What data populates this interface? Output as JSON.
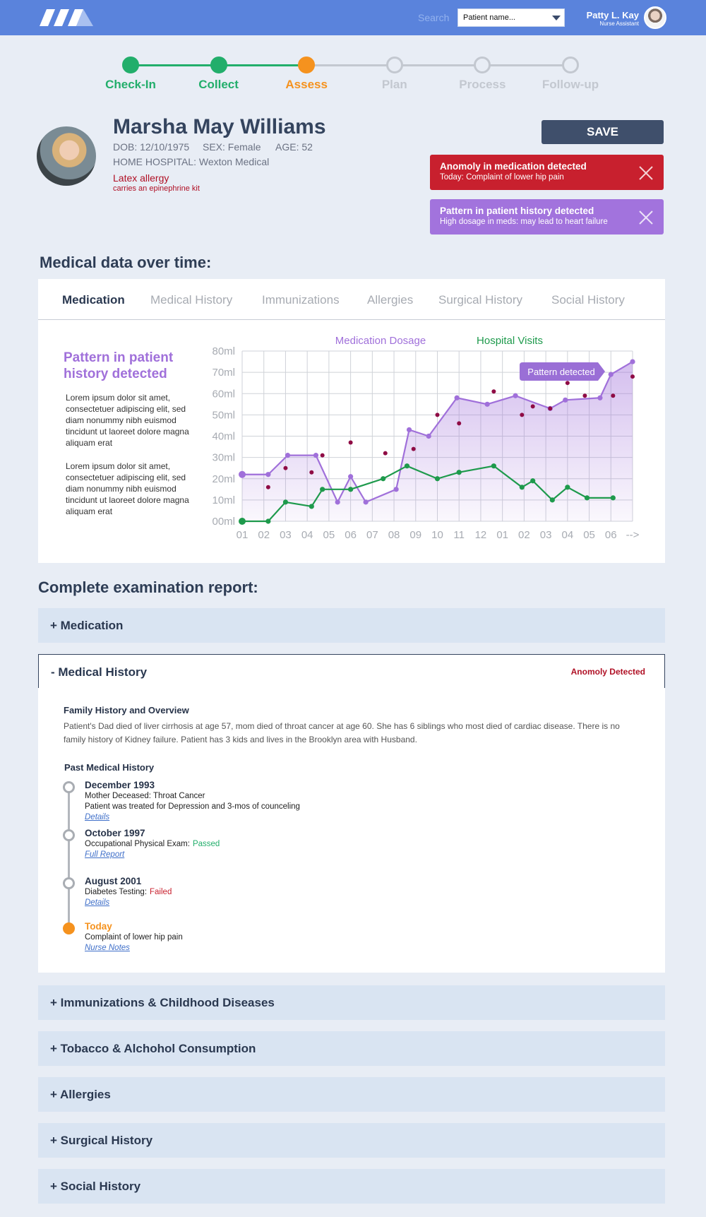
{
  "header": {
    "search_label": "Search",
    "search_placeholder": "Patient name...",
    "user_name": "Patty L. Kay",
    "user_role": "Nurse Assistant"
  },
  "steps": [
    {
      "label": "Check-In",
      "color": "#22ae6b",
      "filled": true
    },
    {
      "label": "Collect",
      "color": "#22ae6b",
      "filled": true
    },
    {
      "label": "Assess",
      "color": "#f5921e",
      "filled": true
    },
    {
      "label": "Plan",
      "color": "#c3c8d0",
      "filled": false
    },
    {
      "label": "Process",
      "color": "#c3c8d0",
      "filled": false
    },
    {
      "label": "Follow-up",
      "color": "#c3c8d0",
      "filled": false
    }
  ],
  "patient": {
    "name": "Marsha May Williams",
    "dob": "DOB: 12/10/1975",
    "sex": "SEX: Female",
    "age": "AGE: 52",
    "hospital": "HOME HOSPITAL: Wexton Medical",
    "allergy": "Latex allergy",
    "allergy_note": "carries an epinephrine kit"
  },
  "save": "SAVE",
  "alerts": [
    {
      "title": "Anomoly in medication detected",
      "detail": "Today: Complaint of lower hip pain",
      "color": "#c8202e"
    },
    {
      "title": "Pattern in patient history detected",
      "detail": "High dosage in meds: may lead to heart failure",
      "color": "#a273dd"
    }
  ],
  "medical_data_title": "Medical data over time:",
  "tabs": [
    "Medication",
    "Medical History",
    "Immunizations",
    "Allergies",
    "Surgical History",
    "Social History"
  ],
  "side": {
    "title": "Pattern in patient history detected",
    "paragraphs": [
      "Lorem ipsum dolor sit amet, consectetuer adipiscing elit, sed diam nonummy nibh euismod tincidunt ut laoreet dolore magna aliquam erat",
      "Lorem ipsum dolor sit amet, consectetuer adipiscing elit, sed diam nonummy nibh euismod tincidunt ut laoreet dolore magna aliquam erat"
    ]
  },
  "chart_data": {
    "type": "line",
    "annotation": "Pattern detected",
    "xlim": [
      0,
      18
    ],
    "xticks": [
      {
        "value": 0,
        "label": "01"
      },
      {
        "value": 1,
        "label": "02"
      },
      {
        "value": 2,
        "label": "03"
      },
      {
        "value": 3,
        "label": "04"
      },
      {
        "value": 4,
        "label": "05"
      },
      {
        "value": 5,
        "label": "06"
      },
      {
        "value": 6,
        "label": "07"
      },
      {
        "value": 7,
        "label": "08"
      },
      {
        "value": 8,
        "label": "09"
      },
      {
        "value": 9,
        "label": "10"
      },
      {
        "value": 10,
        "label": "11"
      },
      {
        "value": 11,
        "label": "12"
      },
      {
        "value": 12,
        "label": "01"
      },
      {
        "value": 13,
        "label": "02"
      },
      {
        "value": 14,
        "label": "03"
      },
      {
        "value": 15,
        "label": "04"
      },
      {
        "value": 16,
        "label": "05"
      },
      {
        "value": 17,
        "label": "06"
      },
      {
        "value": 18,
        "label": "-->"
      }
    ],
    "ylim": [
      0,
      80
    ],
    "yticks": [
      {
        "value": 0,
        "label": "00ml"
      },
      {
        "value": 10,
        "label": "10ml"
      },
      {
        "value": 20,
        "label": "20ml"
      },
      {
        "value": 30,
        "label": "30ml"
      },
      {
        "value": 40,
        "label": "40ml"
      },
      {
        "value": 50,
        "label": "50ml"
      },
      {
        "value": 60,
        "label": "60ml"
      },
      {
        "value": 70,
        "label": "70ml"
      },
      {
        "value": 80,
        "label": "80ml"
      }
    ],
    "grid": true,
    "series": [
      {
        "name": "Medication Dosage",
        "color": "#a070da",
        "line": true,
        "area": true,
        "x": [
          0,
          1.2,
          2.1,
          3.4,
          4.4,
          5.0,
          5.7,
          7.1,
          7.7,
          8.6,
          9.9,
          11.3,
          12.6,
          14.2,
          14.9,
          16.5,
          17.0,
          18
        ],
        "values": [
          22,
          22,
          31,
          31,
          9,
          21,
          9,
          15,
          43,
          40,
          58,
          55,
          59,
          53,
          57,
          58,
          69,
          75
        ]
      },
      {
        "name": "Hospital Visits",
        "color": "#1e9a4c",
        "line": true,
        "area": false,
        "x": [
          0,
          1.2,
          2.0,
          3.2,
          3.7,
          5.0,
          6.5,
          7.6,
          9.0,
          10.0,
          11.6,
          12.9,
          13.4,
          14.3,
          15.0,
          15.9,
          17.1
        ],
        "values": [
          0,
          0,
          9,
          7,
          15,
          15,
          20,
          26,
          20,
          23,
          26,
          16,
          19,
          10,
          16,
          11,
          11
        ]
      },
      {
        "color": "#8f0c45",
        "line": false,
        "area": false,
        "x": [
          1.2,
          2.0,
          3.2,
          3.7,
          5.0,
          6.6,
          7.9,
          9.0,
          10.0,
          11.6,
          12.9,
          13.4,
          14.2,
          15.0,
          15.8,
          17.1,
          18
        ],
        "values": [
          16,
          25,
          23,
          31,
          37,
          32,
          34,
          50,
          46,
          61,
          50,
          54,
          53,
          65,
          59,
          59,
          68
        ]
      }
    ]
  },
  "report": {
    "title": "Complete examination report:",
    "sections_before": [
      "+ Medication"
    ],
    "open": {
      "label": "- Medical History",
      "flag": "Anomoly Detected",
      "family_title": "Family History and Overview",
      "family_text": "Patient's Dad died of liver cirrhosis at age 57, mom died of throat cancer at age 60. She has 6 siblings who most died of cardiac disease. There is no family history of Kidney failure. Patient has 3 kids and lives in the Brooklyn area with Husband.",
      "past_title": "Past Medical History",
      "timeline": [
        {
          "date": "December 1993",
          "color": "#a9adb3",
          "lines": [
            "Mother Deceased: Throat Cancer",
            "Patient was treated for Depression and 3-mos of counceling"
          ],
          "link": "Details"
        },
        {
          "date": "October 1997",
          "color": "#a9adb3",
          "lines": [
            "Occupational Physical Exam:"
          ],
          "result": "Passed",
          "result_color": "#22ae6b",
          "link": "Full Report"
        },
        {
          "date": "August 2001",
          "color": "#a9adb3",
          "lines": [
            "Diabetes Testing:"
          ],
          "result": "Failed",
          "result_color": "#c8202e",
          "link": "Details"
        },
        {
          "date": "Today",
          "color": "#f5921e",
          "lines": [
            "Complaint of lower hip pain"
          ],
          "link": "Nurse Notes"
        }
      ]
    },
    "sections_after": [
      "+ Immunizations & Childhood Diseases",
      "+ Tobacco & Alchohol Consumption",
      "+ Allergies",
      "+ Surgical History",
      "+ Social History"
    ]
  }
}
